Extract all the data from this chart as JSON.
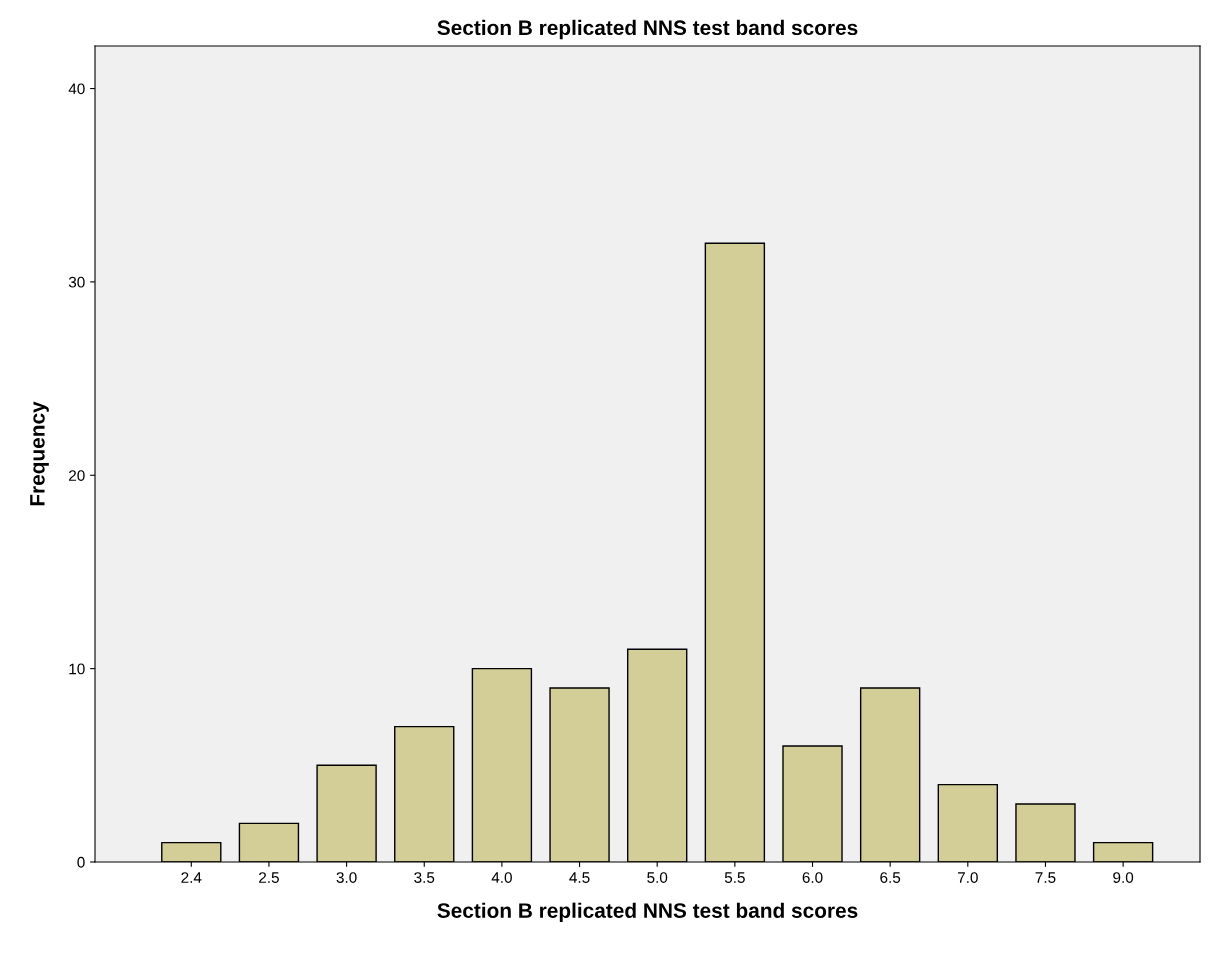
{
  "chart_data": {
    "type": "bar",
    "title": "Section B replicated NNS test band scores",
    "xlabel": "Section B replicated NNS test band scores",
    "ylabel": "Frequency",
    "categories": [
      "2.4",
      "2.5",
      "3.0",
      "3.5",
      "4.0",
      "4.5",
      "5.0",
      "5.5",
      "6.0",
      "6.5",
      "7.0",
      "7.5",
      "9.0"
    ],
    "values": [
      1,
      2,
      5,
      7,
      10,
      9,
      11,
      32,
      6,
      9,
      4,
      3,
      1
    ],
    "color": "#d3ce97",
    "ylim": [
      0,
      42.2
    ],
    "yticks": [
      0,
      10,
      20,
      30,
      40
    ],
    "grid": false
  }
}
